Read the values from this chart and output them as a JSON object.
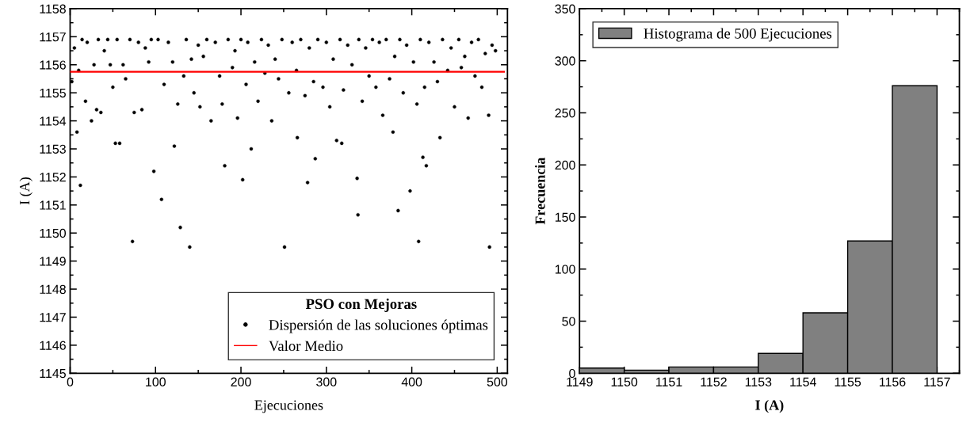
{
  "chart_data": [
    {
      "type": "scatter",
      "xlabel": "Ejecuciones",
      "ylabel": "I (A)",
      "legend_title": "PSO con Mejoras",
      "legend": "bottom right",
      "xlim": [
        0,
        512
      ],
      "ylim": [
        1145,
        1158
      ],
      "xticks": [
        0,
        100,
        200,
        300,
        400,
        500
      ],
      "yticks": [
        1145,
        1146,
        1147,
        1148,
        1149,
        1150,
        1151,
        1152,
        1153,
        1154,
        1155,
        1156,
        1157,
        1158
      ],
      "series": [
        {
          "name": "Dispersión de las soluciones óptimas",
          "color": "#000000",
          "type": "scatter",
          "marker": "circle",
          "x": [
            2,
            5,
            8,
            10,
            12,
            14,
            18,
            20,
            25,
            28,
            31,
            33,
            36,
            40,
            44,
            47,
            50,
            53,
            55,
            58,
            62,
            65,
            70,
            73,
            75,
            80,
            84,
            88,
            92,
            95,
            98,
            103,
            107,
            110,
            115,
            120,
            122,
            126,
            129,
            133,
            136,
            140,
            142,
            145,
            150,
            152,
            156,
            160,
            165,
            170,
            175,
            178,
            181,
            185,
            190,
            193,
            196,
            200,
            202,
            206,
            208,
            212,
            216,
            220,
            224,
            228,
            232,
            236,
            240,
            244,
            248,
            251,
            256,
            260,
            265,
            266,
            270,
            275,
            278,
            280,
            285,
            287,
            290,
            296,
            300,
            304,
            308,
            312,
            316,
            318,
            320,
            325,
            330,
            336,
            337,
            338,
            342,
            346,
            350,
            354,
            358,
            362,
            366,
            370,
            374,
            378,
            380,
            384,
            386,
            390,
            394,
            398,
            402,
            406,
            408,
            410,
            413,
            415,
            417,
            420,
            426,
            430,
            433,
            436,
            442,
            446,
            450,
            455,
            458,
            462,
            466,
            470,
            474,
            478,
            482,
            486,
            490,
            491,
            494,
            498
          ],
          "values": [
            1155.4,
            1156.6,
            1153.6,
            1155.8,
            1151.7,
            1156.9,
            1154.7,
            1156.8,
            1154.0,
            1156.0,
            1154.4,
            1156.9,
            1154.3,
            1156.5,
            1156.9,
            1156.0,
            1155.2,
            1153.2,
            1156.9,
            1153.2,
            1156.0,
            1155.5,
            1156.9,
            1149.7,
            1154.3,
            1156.8,
            1154.4,
            1156.6,
            1156.1,
            1156.9,
            1152.2,
            1156.9,
            1151.2,
            1155.3,
            1156.8,
            1156.1,
            1153.1,
            1154.6,
            1150.2,
            1155.6,
            1156.9,
            1149.5,
            1156.2,
            1155.0,
            1156.7,
            1154.5,
            1156.3,
            1156.9,
            1154.0,
            1156.8,
            1155.6,
            1154.6,
            1152.4,
            1156.9,
            1155.9,
            1156.5,
            1154.1,
            1156.9,
            1151.9,
            1155.3,
            1156.8,
            1153.0,
            1156.1,
            1154.7,
            1156.9,
            1155.7,
            1156.7,
            1154.0,
            1156.2,
            1155.5,
            1156.9,
            1149.5,
            1155.0,
            1156.8,
            1155.8,
            1153.4,
            1156.9,
            1154.9,
            1151.8,
            1156.6,
            1155.4,
            1152.65,
            1156.9,
            1155.2,
            1156.8,
            1154.5,
            1156.2,
            1153.3,
            1156.9,
            1153.2,
            1155.1,
            1156.7,
            1156.0,
            1151.95,
            1150.65,
            1156.9,
            1154.7,
            1156.6,
            1155.6,
            1156.9,
            1155.2,
            1156.8,
            1154.2,
            1156.9,
            1155.5,
            1153.6,
            1156.3,
            1150.8,
            1156.9,
            1155.0,
            1156.7,
            1151.5,
            1156.1,
            1154.6,
            1149.7,
            1156.9,
            1152.7,
            1155.2,
            1152.4,
            1156.8,
            1156.1,
            1155.4,
            1153.4,
            1156.9,
            1155.8,
            1156.6,
            1154.5,
            1156.9,
            1155.9,
            1156.3,
            1154.1,
            1156.8,
            1155.6,
            1156.9,
            1155.2,
            1156.4,
            1154.2,
            1149.5,
            1156.7,
            1156.5
          ]
        },
        {
          "name": "Valor Medio",
          "color": "#ff0000",
          "type": "line",
          "x": [
            0,
            508
          ],
          "values": [
            1155.75,
            1155.75
          ]
        }
      ]
    },
    {
      "type": "histogram",
      "xlabel": "I (A)",
      "ylabel": "Frecuencia",
      "legend": "top left",
      "xlim": [
        1149,
        1157.5
      ],
      "ylim": [
        0,
        350
      ],
      "xticks": [
        1149,
        1150,
        1151,
        1152,
        1153,
        1154,
        1155,
        1156,
        1157
      ],
      "yticks": [
        0,
        50,
        100,
        150,
        200,
        250,
        300,
        350
      ],
      "bins": [
        1149,
        1150,
        1151,
        1152,
        1153,
        1154,
        1155,
        1156,
        1157
      ],
      "series": [
        {
          "name": "Histograma de 500 Ejecuciones",
          "color": "#808080",
          "values": [
            5,
            3,
            6,
            6,
            19,
            58,
            127,
            276
          ]
        }
      ]
    }
  ]
}
